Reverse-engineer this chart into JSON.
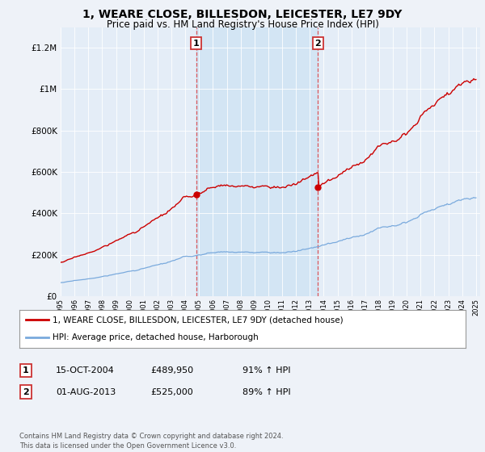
{
  "title": "1, WEARE CLOSE, BILLESDON, LEICESTER, LE7 9DY",
  "subtitle": "Price paid vs. HM Land Registry's House Price Index (HPI)",
  "title_fontsize": 10,
  "subtitle_fontsize": 8.5,
  "background_color": "#eef2f8",
  "plot_bg_color": "#e4edf7",
  "sale1_price": 489950,
  "sale2_price": 525000,
  "sale1_label": "1",
  "sale2_label": "2",
  "sale1_date_str": "15-OCT-2004",
  "sale2_date_str": "01-AUG-2013",
  "sale1_pct": "91% ↑ HPI",
  "sale2_pct": "89% ↑ HPI",
  "legend_label1": "1, WEARE CLOSE, BILLESDON, LEICESTER, LE7 9DY (detached house)",
  "legend_label2": "HPI: Average price, detached house, Harborough",
  "footer": "Contains HM Land Registry data © Crown copyright and database right 2024.\nThis data is licensed under the Open Government Licence v3.0.",
  "red_line_color": "#cc0000",
  "blue_line_color": "#7aaadd",
  "shade_color": "#d0e4f4",
  "ylim_max": 1300000,
  "sale1_year": 2004.79,
  "sale2_year": 2013.58
}
